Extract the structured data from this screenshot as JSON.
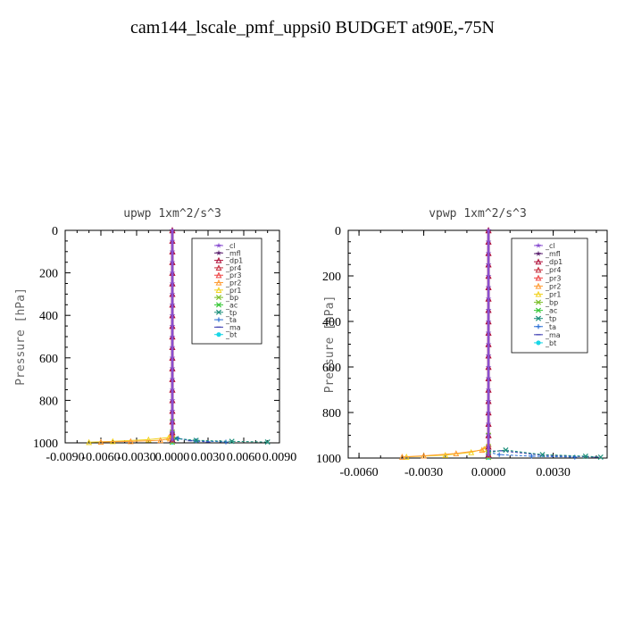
{
  "title": "cam144_lscale_pmf_uppsi0  BUDGET at90E,-75N",
  "legend_entries": [
    "_cl",
    "_mfl",
    "_dp1",
    "_pr4",
    "_pr3",
    "_pr2",
    "_pr1",
    "_bp",
    "_ac",
    "_tp",
    "_ta",
    "_ma",
    "_bt"
  ],
  "legend_colors": [
    "#8a4fd0",
    "#5a1f6e",
    "#b0103a",
    "#c42a3a",
    "#ef4040",
    "#ff9a30",
    "#f2d21e",
    "#7dbf2d",
    "#38c838",
    "#1c8f7a",
    "#2b6fd6",
    "#3a3ab0",
    "#1ad6e6"
  ],
  "legend_markers": [
    "star",
    "star",
    "triangle",
    "triangle",
    "triangle",
    "triangle",
    "triangle",
    "x",
    "x",
    "x",
    "plus",
    "dash",
    "circle"
  ],
  "chart_data": [
    {
      "type": "line",
      "title": "upwp  1xm^2/s^3",
      "ylabel": "Pressure [hPa]",
      "xlim": [
        -0.009,
        0.009
      ],
      "ylim": [
        1000,
        0
      ],
      "xticks": [
        -0.009,
        -0.006,
        -0.003,
        0.0,
        0.003,
        0.006,
        0.009
      ],
      "xtick_labels": [
        "-0.0090",
        "-0.0060",
        "-0.0030",
        "0.0000",
        "0.0030",
        "0.0060",
        "0.0090"
      ],
      "yticks": [
        0,
        200,
        400,
        600,
        800,
        1000
      ],
      "ytick_labels": [
        "0",
        "200",
        "400",
        "600",
        "800",
        "1000"
      ],
      "grid": false,
      "legend_position": "top-right",
      "series": [
        {
          "name": "_cl",
          "x": [
            0,
            0,
            0,
            0,
            0,
            0,
            0,
            0,
            0,
            0,
            0,
            0,
            0,
            0,
            0,
            0,
            0,
            0,
            0,
            0,
            0
          ],
          "y": [
            0,
            50,
            100,
            150,
            200,
            250,
            300,
            350,
            400,
            450,
            500,
            550,
            600,
            650,
            700,
            750,
            800,
            850,
            900,
            950,
            985
          ]
        },
        {
          "name": "_mfl",
          "x": [
            0,
            0,
            0,
            0,
            0,
            0,
            0,
            0,
            0,
            0,
            0,
            0,
            0,
            0,
            0,
            0,
            0,
            0,
            0,
            0,
            0
          ],
          "y": [
            0,
            50,
            100,
            150,
            200,
            250,
            300,
            350,
            400,
            450,
            500,
            550,
            600,
            650,
            700,
            750,
            800,
            850,
            900,
            950,
            985
          ]
        },
        {
          "name": "_dp1",
          "x": [
            0,
            0,
            0,
            0,
            0,
            0,
            0,
            0,
            0,
            0,
            0,
            0,
            0,
            0,
            0,
            0,
            0,
            0,
            0,
            0,
            0
          ],
          "y": [
            0,
            50,
            100,
            150,
            200,
            250,
            300,
            350,
            400,
            450,
            500,
            550,
            600,
            650,
            700,
            750,
            800,
            850,
            900,
            950,
            985
          ]
        },
        {
          "name": "_pr4",
          "x": [
            0,
            0,
            0,
            0,
            0,
            0,
            0,
            0,
            0,
            0,
            0,
            0,
            0,
            0,
            0,
            0,
            0,
            0,
            0,
            0,
            0
          ],
          "y": [
            0,
            50,
            100,
            150,
            200,
            250,
            300,
            350,
            400,
            450,
            500,
            550,
            600,
            650,
            700,
            750,
            800,
            850,
            900,
            950,
            985
          ]
        },
        {
          "name": "_pr3",
          "x": [
            0,
            0,
            0,
            0,
            0,
            0,
            0,
            0,
            0,
            0,
            0,
            0,
            0,
            0,
            0,
            0,
            0,
            0,
            0,
            0,
            0
          ],
          "y": [
            0,
            50,
            100,
            150,
            200,
            250,
            300,
            350,
            400,
            450,
            500,
            550,
            600,
            650,
            700,
            750,
            800,
            850,
            900,
            950,
            985
          ]
        },
        {
          "name": "_pr2",
          "x": [
            0,
            0,
            -0.0002,
            -0.001,
            -0.0035,
            -0.006
          ],
          "y": [
            900,
            960,
            980,
            988,
            993,
            996
          ]
        },
        {
          "name": "_pr1",
          "x": [
            0,
            -0.0003,
            -0.002,
            -0.005,
            -0.007
          ],
          "y": [
            950,
            975,
            985,
            993,
            997
          ]
        },
        {
          "name": "_bp",
          "x": [
            0,
            0,
            0,
            0
          ],
          "y": [
            900,
            950,
            985,
            997
          ]
        },
        {
          "name": "_ac",
          "x": [
            0,
            0,
            0,
            0
          ],
          "y": [
            900,
            950,
            985,
            997
          ]
        },
        {
          "name": "_tp",
          "x": [
            0,
            0.0003,
            0.002,
            0.005,
            0.008
          ],
          "y": [
            960,
            980,
            988,
            993,
            996
          ]
        },
        {
          "name": "_ta",
          "x": [
            0,
            0.0005,
            0.002,
            0.0045
          ],
          "y": [
            960,
            980,
            990,
            996
          ]
        },
        {
          "name": "_ma",
          "x": [
            0,
            0.0004,
            0.0015,
            0.003
          ],
          "y": [
            960,
            978,
            990,
            996
          ]
        },
        {
          "name": "_bt",
          "x": [
            0,
            0,
            0,
            0
          ],
          "y": [
            950,
            985,
            993,
            997
          ]
        }
      ]
    },
    {
      "type": "line",
      "title": "vpwp  1xm^2/s^3",
      "ylabel": "Pressure [hPa]",
      "xlim": [
        -0.0065,
        0.0055
      ],
      "ylim": [
        1000,
        0
      ],
      "xticks": [
        -0.006,
        -0.003,
        0.0,
        0.003
      ],
      "xtick_labels": [
        "-0.0060",
        "-0.0030",
        "0.0000",
        "0.0030"
      ],
      "yticks": [
        0,
        200,
        400,
        600,
        800,
        1000
      ],
      "ytick_labels": [
        "0",
        "200",
        "400",
        "600",
        "800",
        "1000"
      ],
      "grid": false,
      "legend_position": "top-right",
      "series": [
        {
          "name": "_cl",
          "x": [
            0,
            0,
            0,
            0,
            0,
            0,
            0,
            0,
            0,
            0,
            0,
            0,
            0,
            0,
            0,
            0,
            0,
            0,
            0,
            0,
            0
          ],
          "y": [
            0,
            50,
            100,
            150,
            200,
            250,
            300,
            350,
            400,
            450,
            500,
            550,
            600,
            650,
            700,
            750,
            800,
            850,
            900,
            950,
            985
          ]
        },
        {
          "name": "_mfl",
          "x": [
            0,
            0,
            0,
            0,
            0,
            0,
            0,
            0,
            0,
            0,
            0,
            0,
            0,
            0,
            0,
            0,
            0,
            0,
            0,
            0,
            0
          ],
          "y": [
            0,
            50,
            100,
            150,
            200,
            250,
            300,
            350,
            400,
            450,
            500,
            550,
            600,
            650,
            700,
            750,
            800,
            850,
            900,
            950,
            985
          ]
        },
        {
          "name": "_dp1",
          "x": [
            0,
            0,
            0,
            0,
            0,
            0,
            0,
            0,
            0,
            0,
            0,
            0,
            0,
            0,
            0,
            0,
            0,
            0,
            0,
            0,
            0
          ],
          "y": [
            0,
            50,
            100,
            150,
            200,
            250,
            300,
            350,
            400,
            450,
            500,
            550,
            600,
            650,
            700,
            750,
            800,
            850,
            900,
            950,
            985
          ]
        },
        {
          "name": "_pr4",
          "x": [
            0,
            0,
            0,
            0,
            0,
            0,
            0,
            0,
            0,
            0,
            0,
            0,
            0,
            0,
            0,
            0,
            0,
            0,
            0,
            0,
            0
          ],
          "y": [
            0,
            50,
            100,
            150,
            200,
            250,
            300,
            350,
            400,
            450,
            500,
            550,
            600,
            650,
            700,
            750,
            800,
            850,
            900,
            950,
            985
          ]
        },
        {
          "name": "_pr3",
          "x": [
            0,
            0,
            0,
            0,
            0,
            0,
            0,
            0,
            0,
            0,
            0,
            0,
            0,
            0,
            0,
            0,
            0,
            0,
            0,
            0,
            0
          ],
          "y": [
            0,
            50,
            100,
            150,
            200,
            250,
            300,
            350,
            400,
            450,
            500,
            550,
            600,
            650,
            700,
            750,
            800,
            850,
            900,
            950,
            985
          ]
        },
        {
          "name": "_pr2",
          "x": [
            0,
            -0.0003,
            -0.0015,
            -0.003,
            -0.004
          ],
          "y": [
            940,
            965,
            980,
            990,
            995
          ]
        },
        {
          "name": "_pr1",
          "x": [
            0,
            -0.0002,
            -0.0008,
            -0.002,
            -0.0038
          ],
          "y": [
            940,
            960,
            975,
            987,
            995
          ]
        },
        {
          "name": "_bp",
          "x": [
            0,
            0,
            0,
            0
          ],
          "y": [
            900,
            950,
            985,
            997
          ]
        },
        {
          "name": "_ac",
          "x": [
            0,
            0,
            0,
            0
          ],
          "y": [
            900,
            950,
            985,
            997
          ]
        },
        {
          "name": "_tp",
          "x": [
            0,
            0.0008,
            0.0025,
            0.0045,
            0.0052
          ],
          "y": [
            975,
            965,
            985,
            992,
            996
          ]
        },
        {
          "name": "_ta",
          "x": [
            0,
            0.0005,
            0.002,
            0.004
          ],
          "y": [
            975,
            985,
            992,
            996
          ]
        },
        {
          "name": "_ma",
          "x": [
            0,
            0.0006,
            0.0025,
            0.005
          ],
          "y": [
            970,
            968,
            988,
            996
          ]
        },
        {
          "name": "_bt",
          "x": [
            0,
            0,
            0,
            0
          ],
          "y": [
            950,
            985,
            993,
            997
          ]
        }
      ]
    }
  ]
}
